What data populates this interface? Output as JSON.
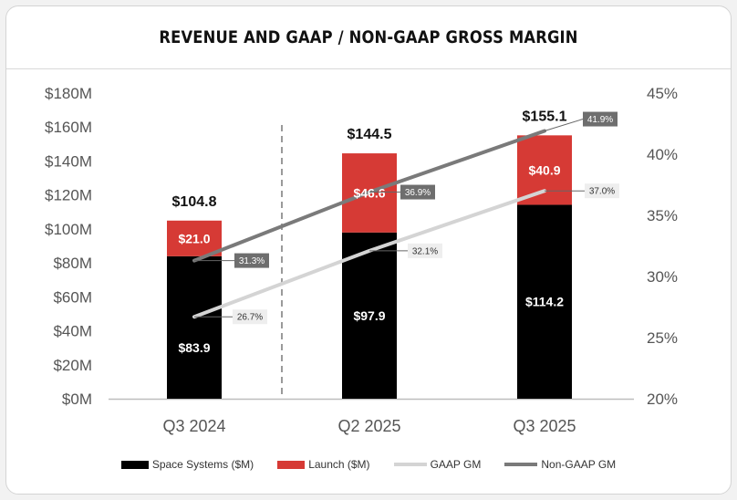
{
  "chart_data": {
    "type": "bar",
    "title": "REVENUE AND GAAP / NON-GAAP GROSS MARGIN",
    "categories": [
      "Q3 2024",
      "Q2 2025",
      "Q3 2025"
    ],
    "ylim": [
      0,
      180
    ],
    "y_ticks": [
      0,
      20,
      40,
      60,
      80,
      100,
      120,
      140,
      160,
      180
    ],
    "y_tick_labels": [
      "$0M",
      "$20M",
      "$40M",
      "$60M",
      "$80M",
      "$100M",
      "$120M",
      "$140M",
      "$160M",
      "$180M"
    ],
    "y2lim": [
      20,
      45
    ],
    "y2_ticks": [
      20,
      25,
      30,
      35,
      40,
      45
    ],
    "y2_tick_labels": [
      "20%",
      "25%",
      "30%",
      "35%",
      "40%",
      "45%"
    ],
    "stacked": true,
    "series": [
      {
        "name": "Space Systems ($M)",
        "color": "#000000",
        "values": [
          83.9,
          97.9,
          114.2
        ],
        "labels": [
          "$83.9",
          "$97.9",
          "$114.2"
        ]
      },
      {
        "name": "Launch ($M)",
        "color": "#d63a35",
        "values": [
          21.0,
          46.6,
          40.9
        ],
        "labels": [
          "$21.0",
          "$46.6",
          "$40.9"
        ]
      }
    ],
    "totals": [
      104.8,
      144.5,
      155.1
    ],
    "total_labels": [
      "$104.8",
      "$144.5",
      "$155.1"
    ],
    "lines": [
      {
        "name": "GAAP GM",
        "color": "#d4d4d4",
        "axis": "right",
        "values": [
          26.7,
          32.1,
          37.0
        ],
        "labels": [
          "26.7%",
          "32.1%",
          "37.0%"
        ]
      },
      {
        "name": "Non-GAAP GM",
        "color": "#7a7a7a",
        "axis": "right",
        "values": [
          31.3,
          36.9,
          41.9
        ],
        "labels": [
          "31.3%",
          "36.9%",
          "41.9%"
        ]
      }
    ],
    "legend_position": "bottom"
  }
}
